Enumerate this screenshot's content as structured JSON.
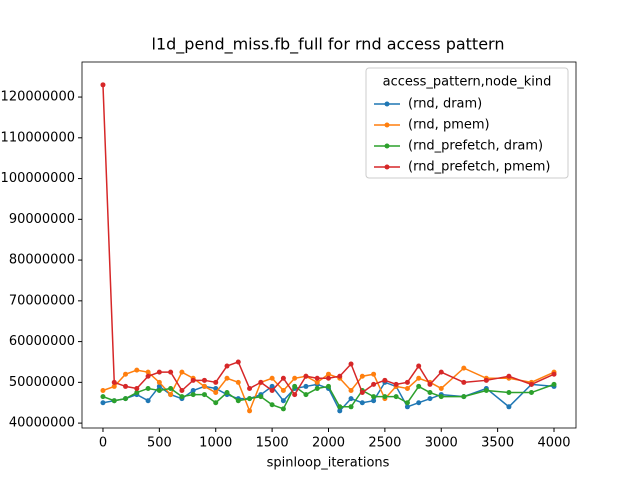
{
  "chart_data": {
    "type": "line",
    "title": "l1d_pend_miss.fb_full for rnd access pattern",
    "x_label": "spinloop_iterations",
    "legend_title": "access_pattern,node_kind",
    "legend": "upper right",
    "x": [
      0,
      100,
      200,
      300,
      400,
      500,
      600,
      700,
      800,
      900,
      1000,
      1100,
      1200,
      1300,
      1400,
      1500,
      1600,
      1700,
      1800,
      1900,
      2000,
      2100,
      2200,
      2300,
      2400,
      2500,
      2600,
      2700,
      2800,
      2900,
      3000,
      3200,
      3400,
      3600,
      3800,
      4000
    ],
    "series": [
      {
        "name": "(rnd, dram)",
        "color": "#1f77b4",
        "values": [
          45000000,
          45500000,
          46000000,
          47000000,
          45500000,
          49000000,
          47000000,
          46000000,
          48000000,
          49000000,
          48500000,
          47000000,
          46000000,
          46000000,
          47000000,
          49000000,
          45500000,
          48500000,
          49000000,
          49500000,
          48500000,
          43000000,
          46000000,
          45000000,
          45500000,
          50000000,
          49000000,
          44000000,
          45000000,
          46000000,
          47000000,
          46500000,
          48500000,
          44000000,
          49500000,
          49000000
        ]
      },
      {
        "name": "(rnd, pmem)",
        "color": "#ff7f0e",
        "values": [
          48000000,
          49000000,
          52000000,
          53000000,
          52500000,
          50000000,
          47000000,
          52500000,
          51000000,
          49000000,
          47500000,
          51000000,
          50000000,
          43000000,
          50000000,
          51000000,
          48000000,
          51000000,
          51500000,
          50000000,
          52000000,
          51000000,
          48000000,
          51500000,
          52000000,
          46000000,
          49000000,
          48500000,
          51000000,
          50000000,
          48500000,
          53500000,
          51000000,
          51000000,
          50000000,
          52500000
        ]
      },
      {
        "name": "(rnd_prefetch, dram)",
        "color": "#2ca02c",
        "values": [
          46500000,
          45500000,
          46000000,
          47500000,
          48500000,
          48000000,
          48500000,
          46500000,
          47000000,
          47000000,
          45000000,
          47500000,
          45500000,
          46000000,
          46500000,
          44500000,
          43500000,
          49000000,
          47000000,
          48500000,
          49000000,
          44000000,
          44000000,
          48000000,
          46500000,
          46500000,
          46500000,
          45000000,
          49000000,
          47500000,
          46500000,
          46500000,
          48000000,
          47500000,
          47500000,
          49500000
        ]
      },
      {
        "name": "(rnd_prefetch, pmem)",
        "color": "#d62728",
        "values": [
          123000000,
          50000000,
          49000000,
          48500000,
          51500000,
          52500000,
          52500000,
          48000000,
          50500000,
          50500000,
          50000000,
          54000000,
          55000000,
          48500000,
          50000000,
          48000000,
          51000000,
          47000000,
          51500000,
          51000000,
          51000000,
          51500000,
          54500000,
          47500000,
          49500000,
          50500000,
          49500000,
          50000000,
          54000000,
          49500000,
          52500000,
          50000000,
          50500000,
          51500000,
          49500000,
          52000000
        ]
      }
    ],
    "xlim": [
      -186,
      4195
    ],
    "ylim": [
      38800000,
      128600000
    ],
    "xticks": [
      0,
      500,
      1000,
      1500,
      2000,
      2500,
      3000,
      3500,
      4000
    ],
    "yticks": [
      40000000,
      50000000,
      60000000,
      70000000,
      80000000,
      90000000,
      100000000,
      110000000,
      120000000
    ]
  }
}
